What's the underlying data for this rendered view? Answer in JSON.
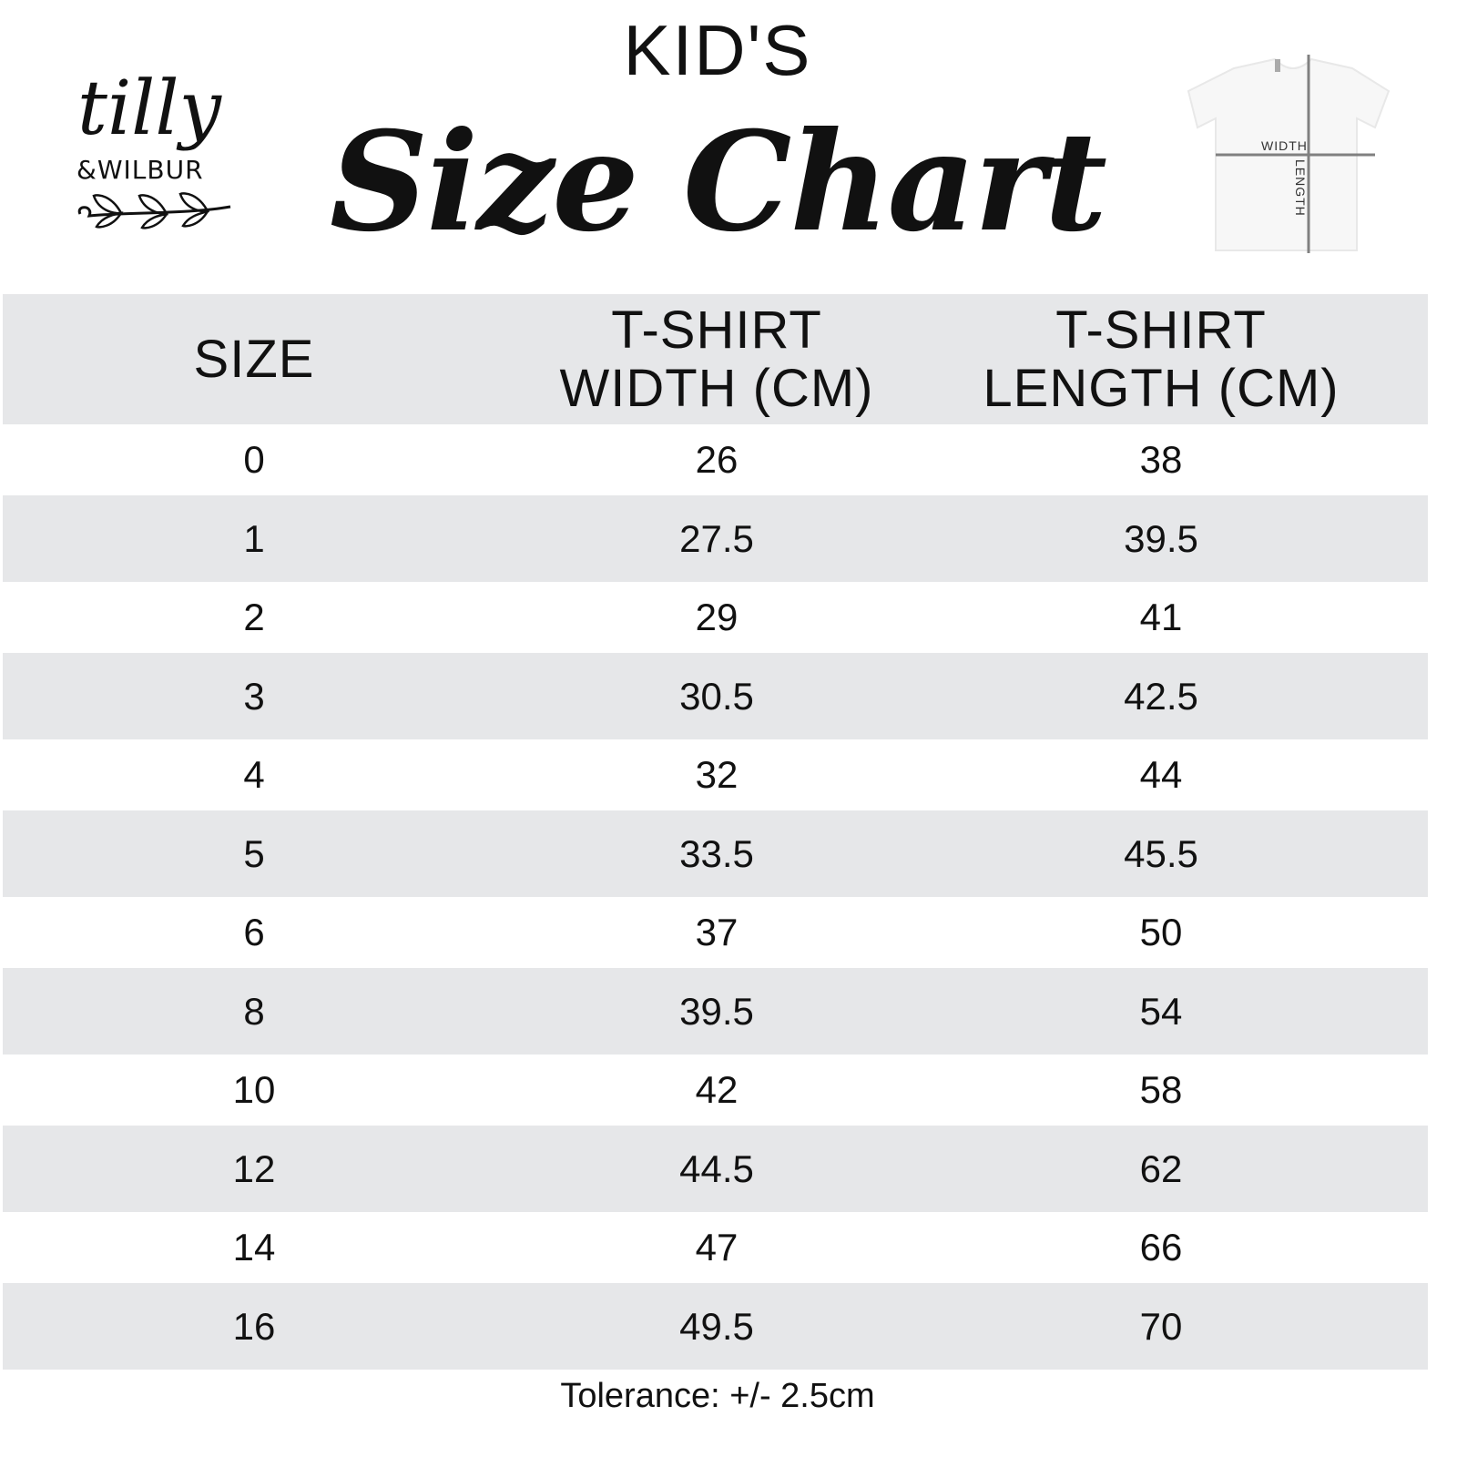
{
  "header": {
    "kicker": "KID'S",
    "title": "Size Chart"
  },
  "logo": {
    "line1": "tilly",
    "line2": "&WILBUR"
  },
  "shirt_diagram": {
    "width_label": "WIDTH",
    "length_label": "LENGTH"
  },
  "table": {
    "columns": [
      "SIZE",
      "T-SHIRT\nWIDTH (CM)",
      "T-SHIRT\nLENGTH (CM)"
    ],
    "col_lines": [
      [
        "SIZE"
      ],
      [
        "T-SHIRT",
        "WIDTH (CM)"
      ],
      [
        "T-SHIRT",
        "LENGTH (CM)"
      ]
    ],
    "rows": [
      [
        "0",
        "26",
        "38"
      ],
      [
        "1",
        "27.5",
        "39.5"
      ],
      [
        "2",
        "29",
        "41"
      ],
      [
        "3",
        "30.5",
        "42.5"
      ],
      [
        "4",
        "32",
        "44"
      ],
      [
        "5",
        "33.5",
        "45.5"
      ],
      [
        "6",
        "37",
        "50"
      ],
      [
        "8",
        "39.5",
        "54"
      ],
      [
        "10",
        "42",
        "58"
      ],
      [
        "12",
        "44.5",
        "62"
      ],
      [
        "14",
        "47",
        "66"
      ],
      [
        "16",
        "49.5",
        "70"
      ]
    ],
    "stripe_color": "#e6e7e9"
  },
  "footer": {
    "tolerance": "Tolerance: +/- 2.5cm"
  }
}
